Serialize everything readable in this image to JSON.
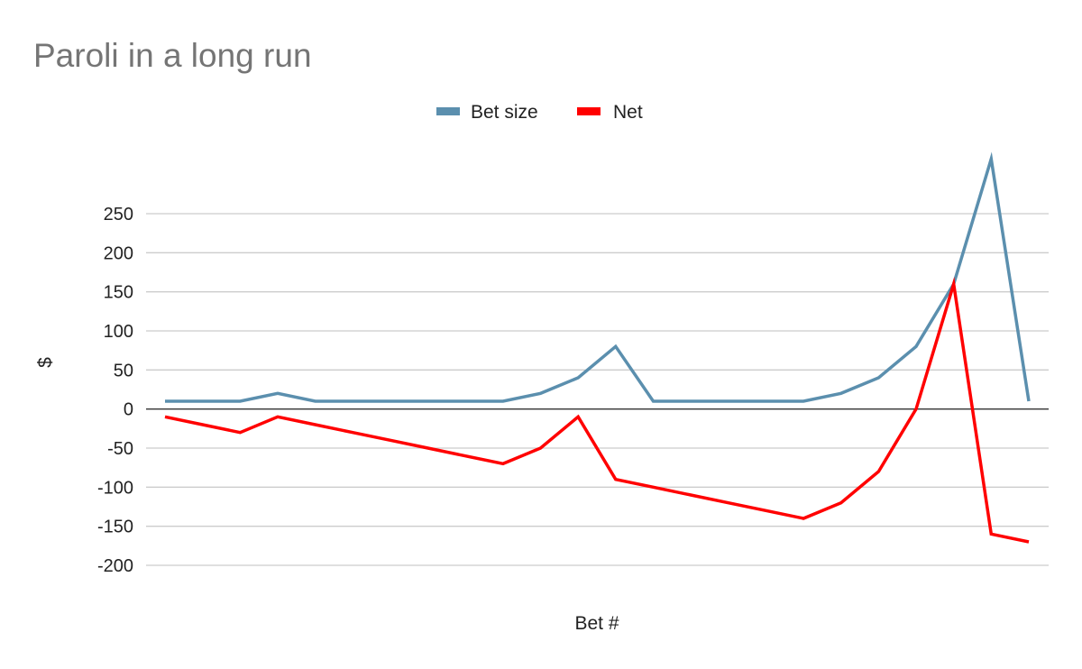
{
  "chart_data": {
    "type": "line",
    "title": "Paroli in a long run",
    "xlabel": "Bet #",
    "ylabel": "$",
    "ylim": [
      -200,
      250
    ],
    "yticks": [
      250,
      200,
      150,
      100,
      50,
      0,
      -50,
      -100,
      -150,
      -200
    ],
    "grid": true,
    "legend_position": "top",
    "x": [
      1,
      2,
      3,
      4,
      5,
      6,
      7,
      8,
      9,
      10,
      11,
      12,
      13,
      14,
      15,
      16,
      17,
      18,
      19,
      20,
      21,
      22,
      23,
      24
    ],
    "series": [
      {
        "name": "Bet size",
        "color": "#5b8fae",
        "values": [
          10,
          10,
          10,
          20,
          10,
          10,
          10,
          10,
          10,
          10,
          20,
          40,
          80,
          10,
          10,
          10,
          10,
          10,
          20,
          40,
          80,
          160,
          320,
          10
        ]
      },
      {
        "name": "Net",
        "color": "#ff0000",
        "values": [
          -10,
          -20,
          -30,
          -10,
          -20,
          -30,
          -40,
          -50,
          -60,
          -70,
          -50,
          -10,
          -90,
          -100,
          -110,
          -120,
          -130,
          -140,
          -120,
          -80,
          0,
          160,
          -160,
          -170
        ]
      }
    ]
  }
}
